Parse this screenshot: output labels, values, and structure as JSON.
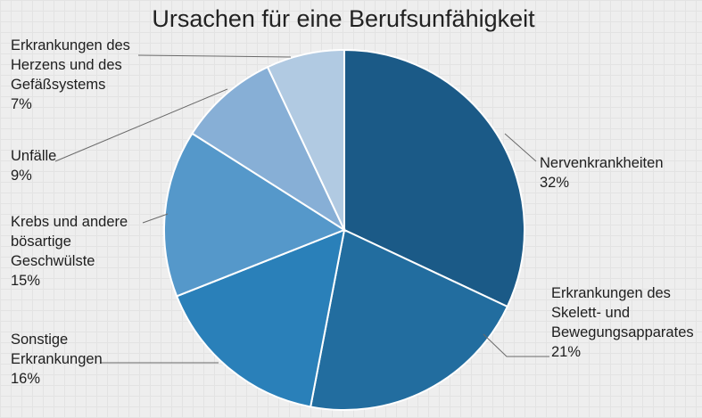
{
  "chart_data": {
    "type": "pie",
    "title": "Ursachen für eine Berufsunfähigkeit",
    "slices": [
      {
        "label": [
          "Nervenkrankheiten"
        ],
        "value": 32,
        "value_label": "32%",
        "color": "#1b5a87"
      },
      {
        "label": [
          "Erkrankungen des",
          "Skelett- und",
          "Bewegungsapparates"
        ],
        "value": 21,
        "value_label": "21%",
        "color": "#226d9f"
      },
      {
        "label": [
          "Sonstige",
          "Erkrankungen"
        ],
        "value": 16,
        "value_label": "16%",
        "color": "#2a80b9"
      },
      {
        "label": [
          "Krebs und andere",
          "bösartige",
          "Geschwülste"
        ],
        "value": 15,
        "value_label": "15%",
        "color": "#5598ca"
      },
      {
        "label": [
          "Unfälle"
        ],
        "value": 9,
        "value_label": "9%",
        "color": "#87afd6"
      },
      {
        "label": [
          "Erkrankungen des",
          "Herzens und des",
          "Gefäßsystems"
        ],
        "value": 7,
        "value_label": "7%",
        "color": "#b1cae2"
      }
    ]
  }
}
